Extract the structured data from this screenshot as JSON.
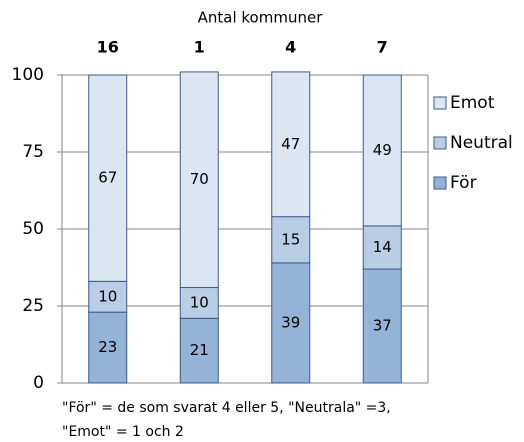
{
  "chart_data": {
    "type": "stacked_bar",
    "title": "Antal kommuner",
    "categories": [
      "16",
      "1",
      "4",
      "7"
    ],
    "series": [
      {
        "name": "För",
        "color": "#95b3d7",
        "values": [
          23,
          21,
          39,
          37
        ]
      },
      {
        "name": "Neutral",
        "color": "#b9cde5",
        "values": [
          10,
          10,
          15,
          14
        ]
      },
      {
        "name": "Emot",
        "color": "#dce6f2",
        "values": [
          67,
          70,
          47,
          49
        ]
      }
    ],
    "ylim": [
      0,
      100
    ],
    "yticks": [
      0,
      25,
      50,
      75,
      100
    ],
    "grid": true,
    "legend": "right",
    "note": [
      "\"För\" = de som svarat 4 eller 5, \"Neutrala\" =3,",
      "\"Emot\" = 1 och 2"
    ]
  }
}
